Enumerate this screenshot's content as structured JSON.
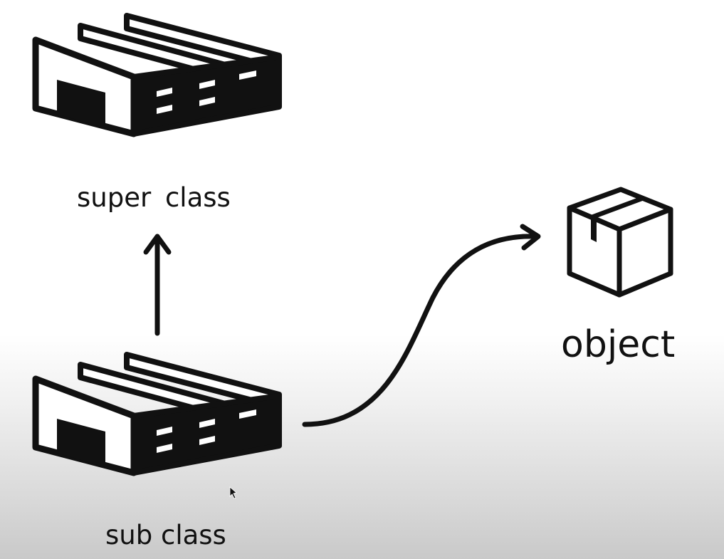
{
  "diagram": {
    "nodes": [
      {
        "id": "super",
        "label": "super class",
        "icon": "factory-icon"
      },
      {
        "id": "sub",
        "label": "sub class",
        "icon": "factory-icon"
      },
      {
        "id": "object",
        "label": "object",
        "icon": "box-icon"
      }
    ],
    "edges": [
      {
        "from": "sub",
        "to": "super",
        "style": "straight-arrow"
      },
      {
        "from": "sub",
        "to": "object",
        "style": "curved-arrow"
      }
    ]
  },
  "colors": {
    "ink": "#111111",
    "background": "#ffffff",
    "background_bottom": "#c9c9c9"
  }
}
